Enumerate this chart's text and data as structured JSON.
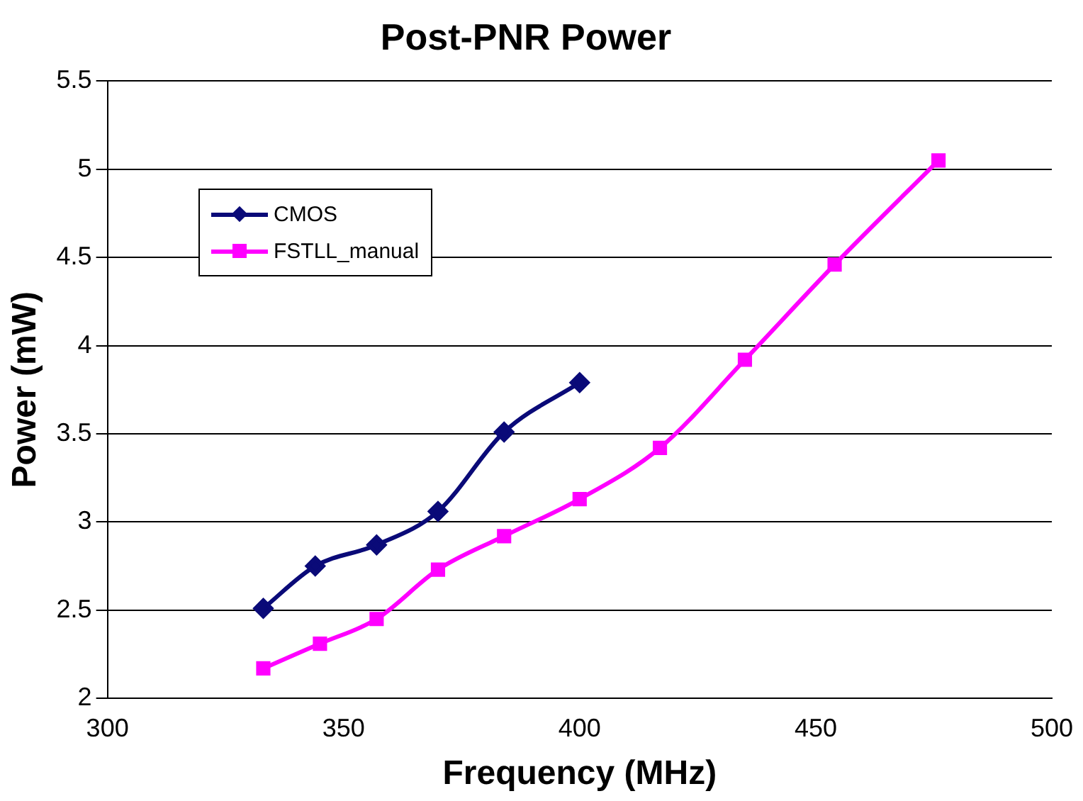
{
  "chart_data": {
    "type": "line",
    "title": "Post-PNR Power",
    "xlabel": "Frequency (MHz)",
    "ylabel": "Power (mW)",
    "xlim": [
      300,
      500
    ],
    "xticks": [
      300,
      350,
      400,
      450,
      500
    ],
    "ylim": [
      2,
      5.5
    ],
    "yticks": [
      2,
      2.5,
      3,
      3.5,
      4,
      4.5,
      5,
      5.5
    ],
    "grid": "y",
    "legend": "top left",
    "series": [
      {
        "name": "CMOS",
        "color": "#0a0a78",
        "marker": "diamond",
        "x": [
          333,
          344,
          357,
          370,
          384,
          400
        ],
        "values": [
          2.51,
          2.75,
          2.87,
          3.06,
          3.51,
          3.79
        ]
      },
      {
        "name": "FSTLL_manual",
        "color": "#ff00ff",
        "marker": "square",
        "x": [
          333,
          345,
          357,
          370,
          384,
          400,
          417,
          435,
          454,
          476
        ],
        "values": [
          2.17,
          2.31,
          2.45,
          2.73,
          2.92,
          3.13,
          3.42,
          3.92,
          4.46,
          5.05
        ]
      }
    ]
  }
}
